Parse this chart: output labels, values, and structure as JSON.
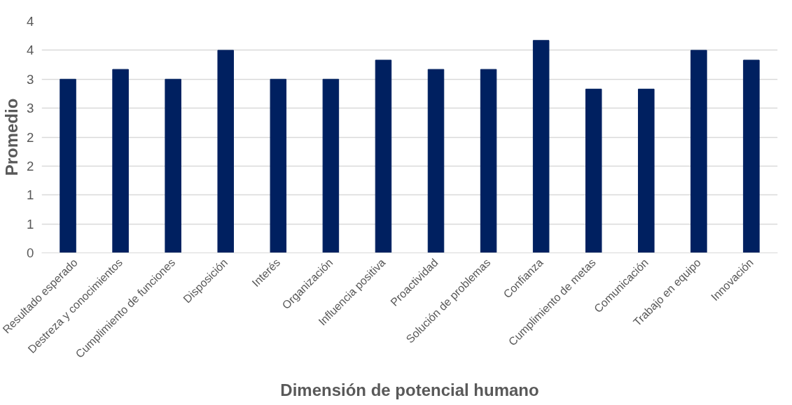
{
  "chart_data": {
    "type": "bar",
    "xlabel": "Dimensión de potencial humano",
    "ylabel": "Promedio",
    "categories": [
      "Resultado esperado",
      "Destreza y conocimientos",
      "Cumplimiento de funciones",
      "Disposición",
      "Interés",
      "Organización",
      "Influencia positiva",
      "Proactividad",
      "Solución de problemas",
      "Confianza",
      "Cumplimiento de metas",
      "Comunicación",
      "Trabajo en equipo",
      "Innovación"
    ],
    "values": [
      3.0,
      3.17,
      3.0,
      3.5,
      3.0,
      3.0,
      3.33,
      3.17,
      3.17,
      3.67,
      2.83,
      2.83,
      3.5,
      3.33
    ],
    "color": "#002060",
    "ylim": [
      0,
      4
    ],
    "yticks": [
      0,
      {
        "value": 0.5,
        "label": "1"
      },
      1,
      {
        "value": 1.5,
        "label": "2"
      },
      2,
      {
        "value": 2.5,
        "label": "3"
      },
      3,
      {
        "value": 3.5,
        "label": "4"
      },
      4
    ],
    "grid": "y"
  }
}
